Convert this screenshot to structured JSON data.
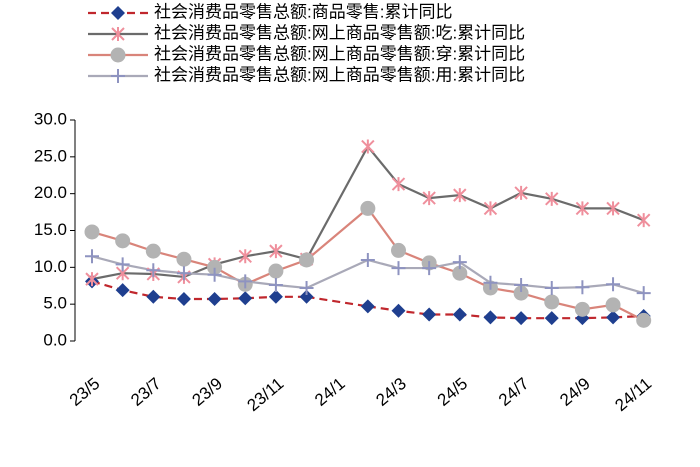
{
  "chart_data": {
    "type": "line",
    "categories": [
      "23/5",
      null,
      "23/7",
      null,
      "23/9",
      null,
      "23/11",
      null,
      "24/1",
      null,
      "24/3",
      null,
      "24/5",
      null,
      "24/7",
      null,
      "24/9",
      null,
      "24/11"
    ],
    "series": [
      {
        "name": "社会消费品零售总额:商品零售:累计同比",
        "color": "#1f3f8f",
        "line_color": "#c0272d",
        "dashed": true,
        "marker": "diamond",
        "values": [
          8.1,
          6.9,
          6.0,
          5.7,
          5.7,
          5.8,
          6.0,
          6.0,
          null,
          4.7,
          4.1,
          3.6,
          3.6,
          3.2,
          3.1,
          3.1,
          3.1,
          3.2,
          3.4
        ]
      },
      {
        "name": "社会消费品零售总额:网上商品零售额:吃:累计同比",
        "color": "#ef8f9c",
        "line_color": "#6b6b6b",
        "dashed": false,
        "marker": "asterisk",
        "values": [
          8.4,
          9.2,
          9.1,
          8.7,
          10.4,
          11.5,
          12.2,
          11.1,
          null,
          26.4,
          21.3,
          19.4,
          19.8,
          18.0,
          20.1,
          19.3,
          18.0,
          18.0,
          16.4
        ]
      },
      {
        "name": "社会消费品零售总额:网上商品零售额:穿:累计同比",
        "color": "#b3b3b3",
        "line_color": "#d9847a",
        "dashed": false,
        "marker": "circle",
        "values": [
          14.8,
          13.6,
          12.2,
          11.1,
          10.0,
          7.7,
          9.5,
          11.0,
          null,
          18.0,
          12.3,
          10.6,
          9.2,
          7.2,
          6.5,
          5.3,
          4.3,
          4.9,
          2.8
        ]
      },
      {
        "name": "社会消费品零售总额:网上商品零售额:用:累计同比",
        "color": "#8e93c0",
        "line_color": "#a9a9b8",
        "dashed": false,
        "marker": "plus",
        "values": [
          11.5,
          10.4,
          9.6,
          9.2,
          9.0,
          8.1,
          7.6,
          7.2,
          null,
          11.0,
          9.9,
          9.9,
          10.7,
          7.9,
          7.6,
          7.2,
          7.3,
          7.7,
          6.5
        ]
      }
    ],
    "ylim": [
      0,
      30
    ],
    "yticks": [
      {
        "value": 0,
        "label": "0.0"
      },
      {
        "value": 5,
        "label": "5.0"
      },
      {
        "value": 10,
        "label": "10.0"
      },
      {
        "value": 15,
        "label": "15.0"
      },
      {
        "value": 20,
        "label": "20.0"
      },
      {
        "value": 25,
        "label": "25.0"
      },
      {
        "value": 30,
        "label": "30.0"
      }
    ]
  }
}
